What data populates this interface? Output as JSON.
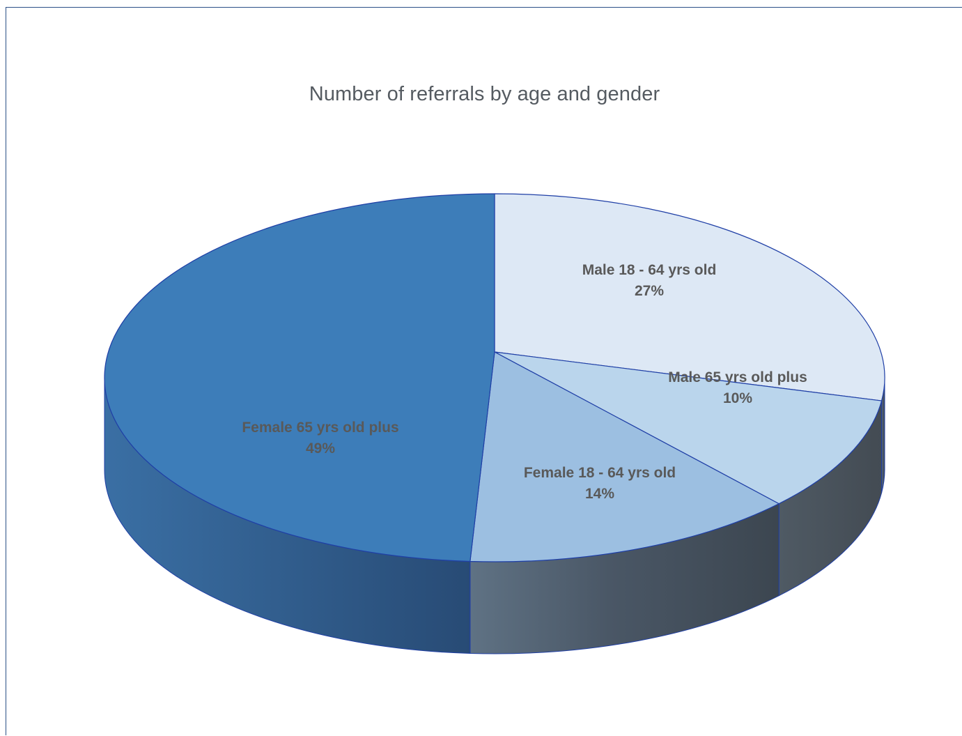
{
  "chart_data": {
    "type": "pie",
    "title": "Number of referrals by age and gender",
    "slices": [
      {
        "label": "Male 18 - 64 yrs old",
        "percent_label": "27%",
        "value": 27,
        "color": "#dde8f5"
      },
      {
        "label": "Male 65 yrs old plus",
        "percent_label": "10%",
        "value": 10,
        "color": "#bad5ec"
      },
      {
        "label": "Female 18 - 64 yrs old",
        "percent_label": "14%",
        "value": 14,
        "color": "#9cbfe1"
      },
      {
        "label": "Female 65 yrs old plus",
        "percent_label": "49%",
        "value": 49,
        "color": "#3d7db9"
      }
    ],
    "colors": {
      "outline": "#1f3fa6",
      "side_dark": "#4a525a",
      "side_blue": "#2f5f8f",
      "title_text": "#555b61",
      "label_text": "#595959"
    }
  }
}
